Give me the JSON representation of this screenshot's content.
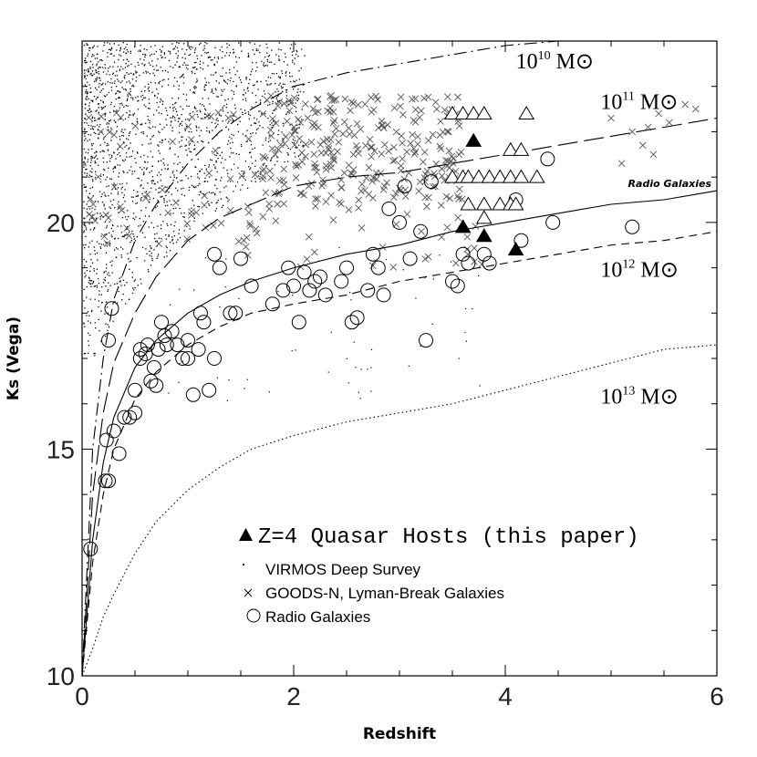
{
  "chart_data": {
    "type": "scatter",
    "xlabel": "Redshift",
    "ylabel": "Ks (Vega)",
    "xlim": [
      0,
      6
    ],
    "ylim": [
      10,
      24
    ],
    "y_inverted": false,
    "x_ticks": [
      0,
      2,
      4,
      6
    ],
    "x_tick_labels": [
      "0",
      "2",
      "4",
      "6"
    ],
    "y_ticks": [
      10,
      15,
      20
    ],
    "y_tick_labels": [
      "10",
      "15",
      "20"
    ],
    "grid": false,
    "legend_position": "bottom-center",
    "annotation_radio": "Radio Galaxies",
    "legend": [
      {
        "marker": "triangle-filled",
        "label": "Z=4 Quasar Hosts (this paper)"
      },
      {
        "marker": "dot",
        "label": "VIRMOS Deep Survey"
      },
      {
        "marker": "cross",
        "label": "GOODS-N, Lyman-Break Galaxies"
      },
      {
        "marker": "circle",
        "label": "Radio Galaxies"
      }
    ],
    "mass_curves": [
      {
        "label_base": "10",
        "label_exp": "10",
        "label_unit": "M⊙",
        "style": "dashdot",
        "label_xy": [
          4.1,
          23.4
        ],
        "x": [
          0.0,
          0.1,
          0.2,
          0.3,
          0.5,
          0.7,
          1.0,
          1.3,
          1.6,
          2.0,
          2.5,
          3.0,
          3.5,
          4.0,
          4.5
        ],
        "y": [
          10.0,
          15.0,
          17.0,
          18.3,
          19.6,
          20.4,
          21.3,
          22.0,
          22.5,
          23.0,
          23.3,
          23.5,
          23.7,
          23.9,
          24.0
        ]
      },
      {
        "label_base": "10",
        "label_exp": "11",
        "label_unit": "M⊙",
        "style": "longdash",
        "label_xy": [
          4.9,
          22.5
        ],
        "x": [
          0.0,
          0.1,
          0.2,
          0.3,
          0.5,
          0.7,
          1.0,
          1.3,
          1.6,
          2.0,
          2.5,
          3.0,
          3.5,
          4.0,
          4.5,
          5.0,
          5.5,
          6.0
        ],
        "y": [
          10.0,
          14.0,
          15.8,
          16.9,
          18.0,
          18.8,
          19.6,
          20.1,
          20.4,
          20.8,
          21.0,
          21.1,
          21.3,
          21.5,
          21.7,
          21.9,
          22.1,
          22.3
        ]
      },
      {
        "label_base": "",
        "label_exp": "",
        "label_unit": "",
        "style": "solid",
        "label_xy": null,
        "x": [
          0.0,
          0.1,
          0.2,
          0.3,
          0.5,
          0.7,
          1.0,
          1.3,
          1.6,
          2.0,
          2.5,
          3.0,
          3.5,
          4.0,
          4.5,
          5.0,
          5.5,
          6.0
        ],
        "y": [
          10.0,
          13.0,
          14.7,
          15.7,
          16.8,
          17.4,
          18.0,
          18.4,
          18.7,
          19.0,
          19.3,
          19.5,
          19.8,
          20.0,
          20.2,
          20.4,
          20.5,
          20.7
        ]
      },
      {
        "label_base": "10",
        "label_exp": "12",
        "label_unit": "M⊙",
        "style": "dashed",
        "label_xy": [
          4.9,
          18.8
        ],
        "x": [
          0.0,
          0.1,
          0.2,
          0.3,
          0.5,
          0.7,
          1.0,
          1.3,
          1.6,
          2.0,
          2.5,
          3.0,
          3.5,
          4.0,
          4.5,
          5.0,
          5.5,
          6.0
        ],
        "y": [
          10.0,
          12.5,
          14.0,
          15.0,
          16.1,
          16.7,
          17.3,
          17.7,
          18.0,
          18.2,
          18.4,
          18.7,
          18.9,
          19.1,
          19.3,
          19.5,
          19.6,
          19.8
        ]
      },
      {
        "label_base": "10",
        "label_exp": "13",
        "label_unit": "M⊙",
        "style": "dotted",
        "label_xy": [
          4.9,
          16.0
        ],
        "x": [
          0.0,
          0.1,
          0.2,
          0.3,
          0.5,
          0.7,
          1.0,
          1.3,
          1.6,
          2.0,
          2.5,
          3.0,
          3.5,
          4.0,
          4.5,
          5.0,
          5.5,
          6.0
        ],
        "y": [
          10.0,
          10.6,
          11.3,
          11.8,
          12.7,
          13.4,
          14.1,
          14.6,
          15.0,
          15.3,
          15.6,
          15.8,
          16.0,
          16.3,
          16.6,
          16.9,
          17.2,
          17.3
        ]
      }
    ],
    "series": [
      {
        "name": "Z=4 Quasar Hosts (this paper)",
        "marker": "triangle-filled",
        "points": [
          [
            3.7,
            21.8
          ],
          [
            3.6,
            19.9
          ],
          [
            3.8,
            19.7
          ],
          [
            4.1,
            19.4
          ]
        ]
      },
      {
        "name": "Radio Galaxies",
        "marker": "circle",
        "points": [
          [
            0.08,
            12.8
          ],
          [
            0.22,
            14.3
          ],
          [
            0.25,
            14.3
          ],
          [
            0.23,
            15.2
          ],
          [
            0.3,
            15.4
          ],
          [
            0.35,
            14.9
          ],
          [
            0.4,
            15.7
          ],
          [
            0.45,
            15.7
          ],
          [
            0.5,
            15.8
          ],
          [
            0.5,
            16.3
          ],
          [
            0.55,
            17.0
          ],
          [
            0.55,
            17.2
          ],
          [
            0.6,
            17.1
          ],
          [
            0.62,
            17.3
          ],
          [
            0.65,
            16.5
          ],
          [
            0.68,
            16.8
          ],
          [
            0.7,
            16.4
          ],
          [
            0.72,
            17.2
          ],
          [
            0.75,
            17.8
          ],
          [
            0.78,
            17.5
          ],
          [
            0.8,
            17.3
          ],
          [
            0.85,
            17.6
          ],
          [
            0.9,
            17.3
          ],
          [
            0.95,
            17.0
          ],
          [
            1.0,
            17.4
          ],
          [
            1.05,
            16.2
          ],
          [
            1.1,
            17.2
          ],
          [
            1.12,
            18.0
          ],
          [
            1.15,
            17.8
          ],
          [
            1.2,
            16.3
          ],
          [
            1.25,
            17.0
          ],
          [
            1.25,
            19.3
          ],
          [
            1.3,
            19.0
          ],
          [
            1.4,
            18.0
          ],
          [
            1.45,
            18.0
          ],
          [
            1.5,
            19.2
          ],
          [
            1.6,
            18.6
          ],
          [
            1.8,
            18.2
          ],
          [
            1.9,
            18.5
          ],
          [
            1.95,
            19.0
          ],
          [
            2.0,
            18.6
          ],
          [
            2.05,
            17.8
          ],
          [
            2.1,
            18.9
          ],
          [
            2.15,
            18.5
          ],
          [
            2.2,
            18.7
          ],
          [
            2.25,
            18.8
          ],
          [
            2.3,
            18.4
          ],
          [
            2.45,
            18.7
          ],
          [
            2.5,
            19.0
          ],
          [
            2.55,
            17.8
          ],
          [
            2.6,
            17.9
          ],
          [
            2.7,
            18.5
          ],
          [
            2.75,
            19.3
          ],
          [
            2.8,
            19.0
          ],
          [
            2.85,
            18.4
          ],
          [
            2.9,
            20.3
          ],
          [
            3.0,
            20.0
          ],
          [
            3.05,
            20.8
          ],
          [
            3.1,
            19.2
          ],
          [
            3.2,
            19.8
          ],
          [
            3.25,
            17.4
          ],
          [
            3.3,
            20.9
          ],
          [
            3.5,
            18.7
          ],
          [
            3.55,
            18.6
          ],
          [
            3.6,
            19.3
          ],
          [
            3.65,
            19.1
          ],
          [
            3.8,
            19.3
          ],
          [
            3.85,
            19.1
          ],
          [
            4.1,
            20.5
          ],
          [
            4.15,
            19.6
          ],
          [
            4.4,
            21.4
          ],
          [
            4.45,
            20.0
          ],
          [
            5.2,
            19.9
          ],
          [
            0.25,
            17.4
          ],
          [
            0.28,
            18.1
          ],
          [
            1.0,
            17.0
          ]
        ]
      },
      {
        "name": "GOODS-N, Lyman-Break Galaxies",
        "marker": "cross",
        "region": "z 1.5-5.7, Ks 19-23"
      },
      {
        "name": "VIRMOS Deep Survey",
        "marker": "dot",
        "region": "z 0-2, Ks 17-24"
      }
    ],
    "open_triangles": [
      [
        3.5,
        22.4
      ],
      [
        3.6,
        22.4
      ],
      [
        3.7,
        22.4
      ],
      [
        3.8,
        22.4
      ],
      [
        4.2,
        22.4
      ],
      [
        4.05,
        21.6
      ],
      [
        4.15,
        21.6
      ],
      [
        3.5,
        21.0
      ],
      [
        3.6,
        21.0
      ],
      [
        3.65,
        21.0
      ],
      [
        3.75,
        21.0
      ],
      [
        3.85,
        21.0
      ],
      [
        3.95,
        21.0
      ],
      [
        4.05,
        21.0
      ],
      [
        4.15,
        21.0
      ],
      [
        4.3,
        21.0
      ],
      [
        3.65,
        20.4
      ],
      [
        3.8,
        20.4
      ],
      [
        3.95,
        20.4
      ],
      [
        4.05,
        20.4
      ],
      [
        4.1,
        20.4
      ],
      [
        3.8,
        20.1
      ]
    ]
  }
}
